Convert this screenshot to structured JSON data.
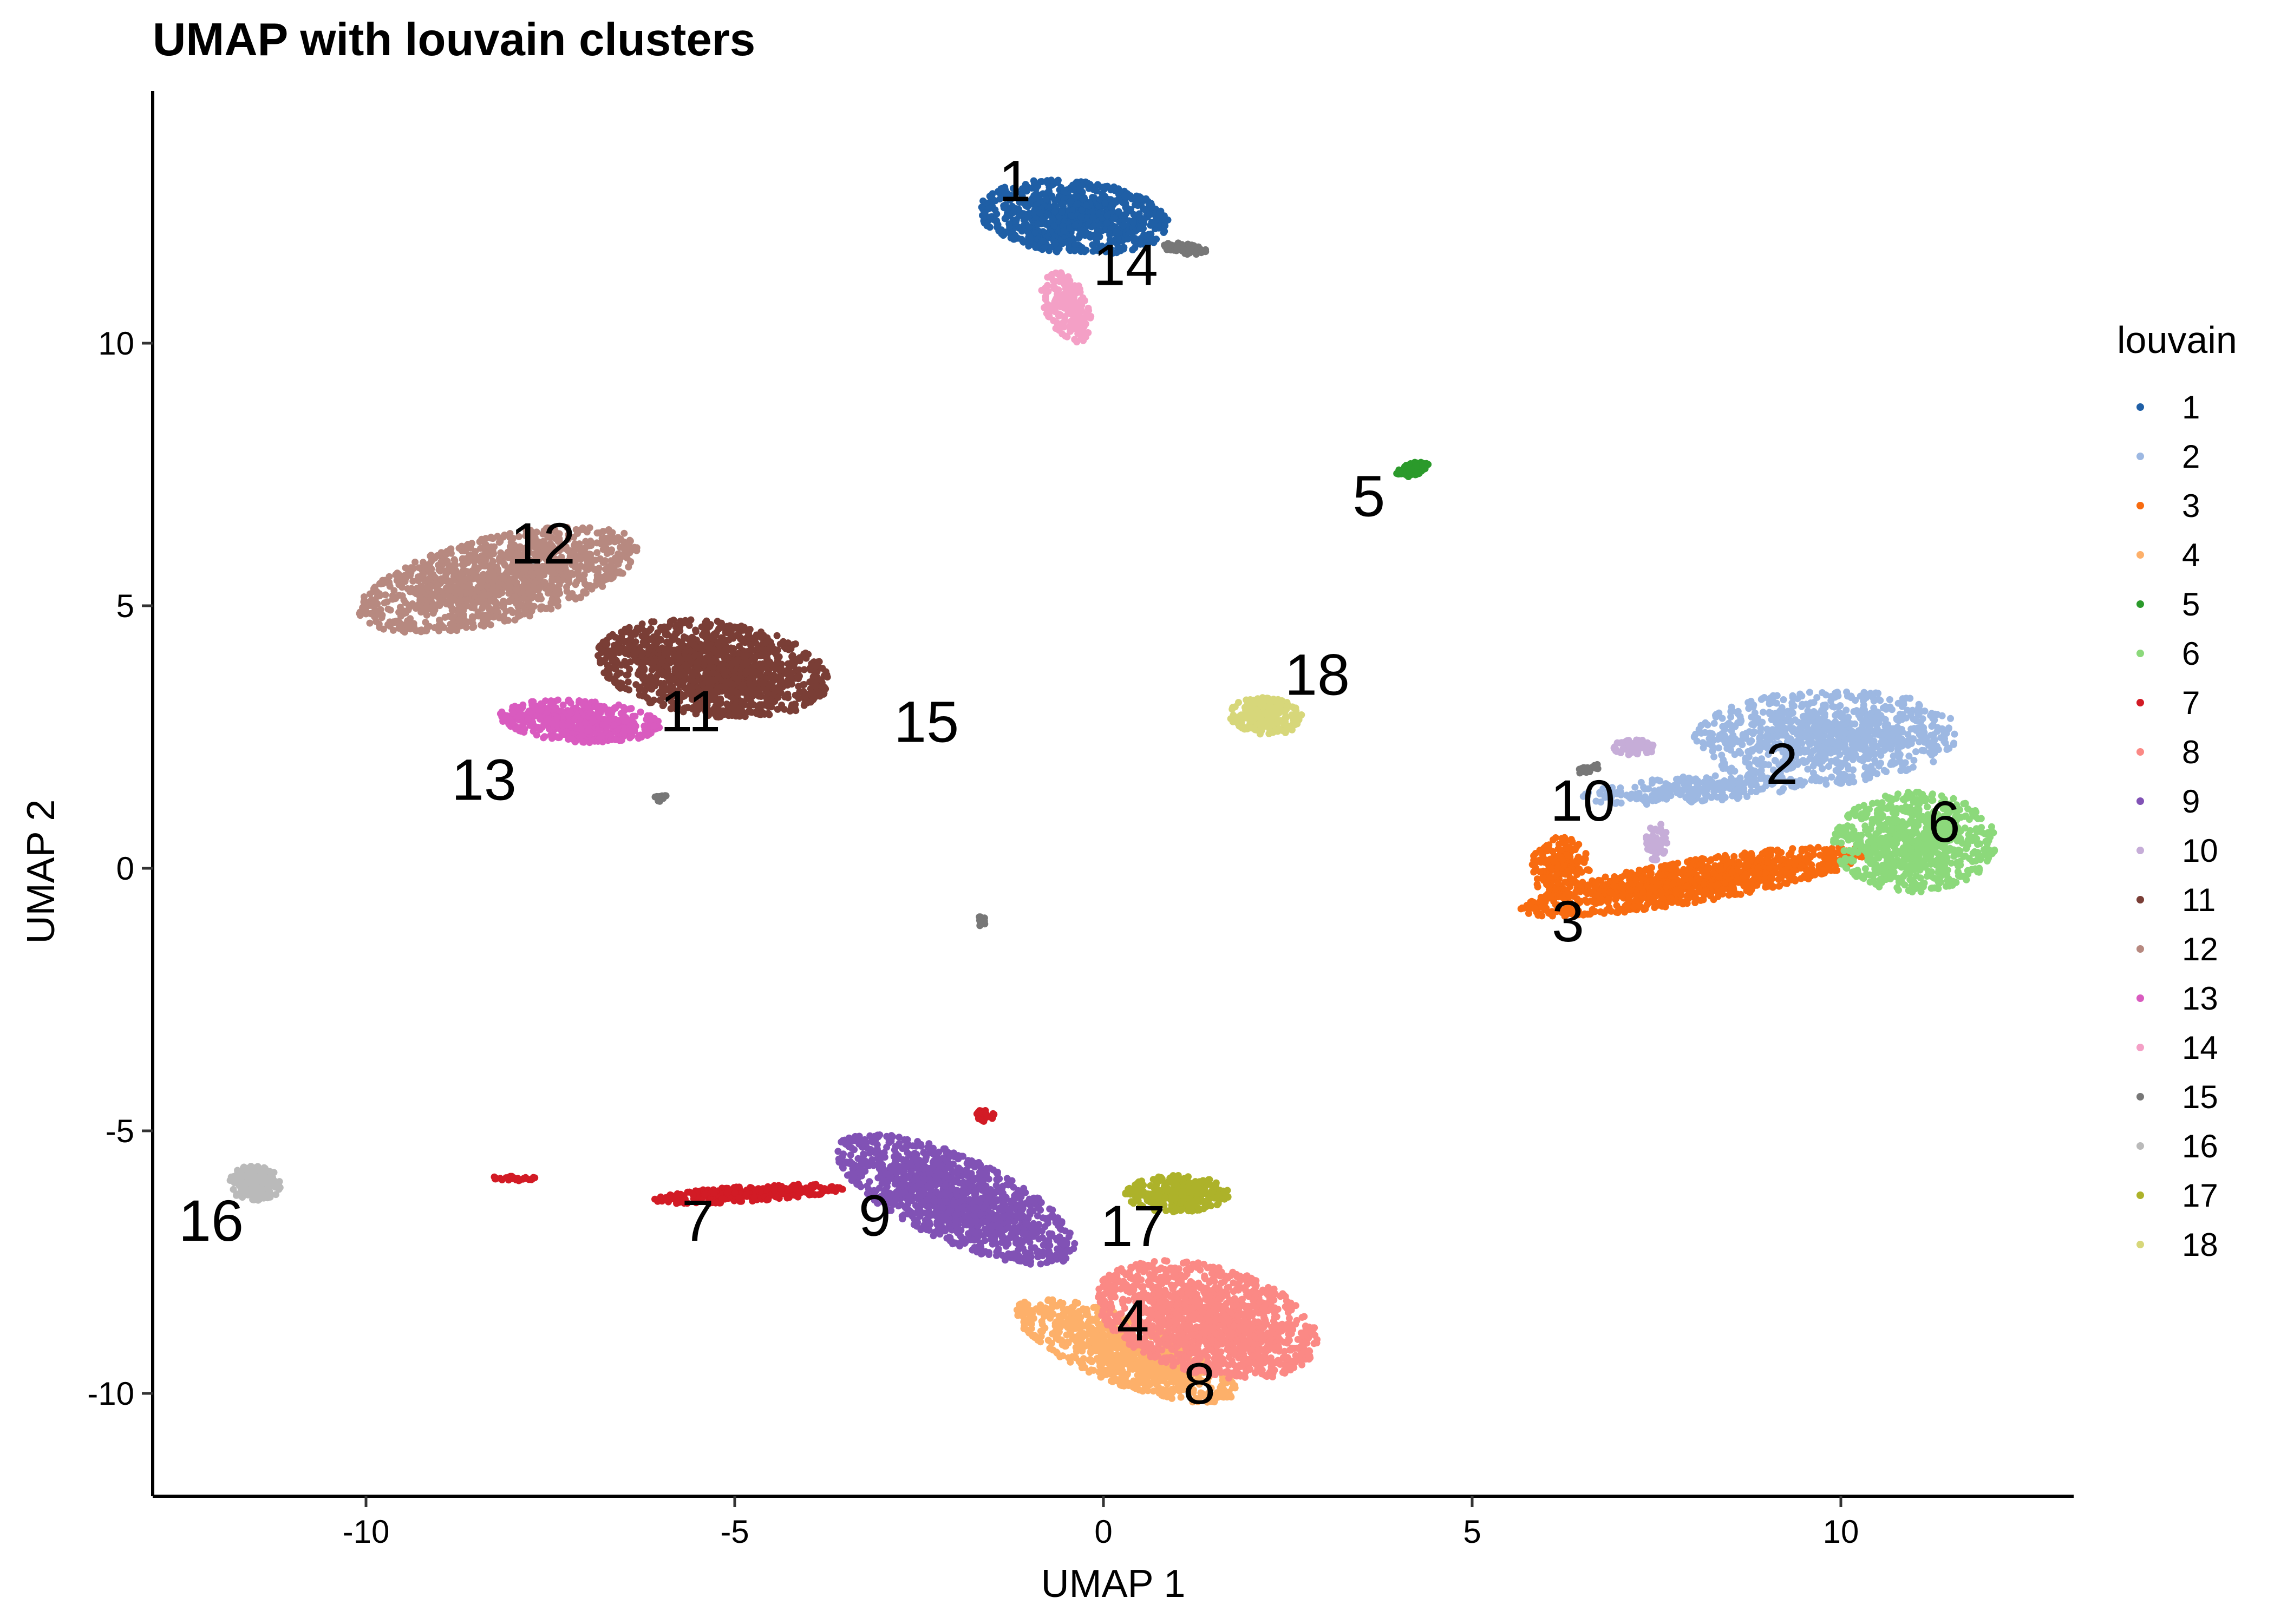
{
  "chart_data": {
    "type": "scatter",
    "title": "UMAP with louvain clusters",
    "xlabel": "UMAP 1",
    "ylabel": "UMAP 2",
    "xlim": [
      -12.9,
      13.0
    ],
    "ylim": [
      -11.9,
      14.5
    ],
    "xticks": [
      -10,
      -5,
      0,
      5,
      10
    ],
    "yticks": [
      -10,
      -5,
      0,
      5,
      10
    ],
    "xtick_labels": [
      "-10",
      "-5",
      "0",
      "5",
      "10"
    ],
    "ytick_labels": [
      "-10",
      "-5",
      "0",
      "5",
      "10"
    ],
    "grid": false,
    "legend": {
      "title": "louvain",
      "position": "right"
    },
    "series": [
      {
        "name": "1",
        "color": "#1F5FA6",
        "label_pos": [
          -1.2,
          13.0
        ],
        "regions": [
          [
            -0.4,
            12.4,
            1.3,
            0.7,
            -8,
            900
          ]
        ]
      },
      {
        "name": "2",
        "color": "#9DB8E2",
        "label_pos": [
          9.2,
          1.9
        ],
        "regions": [
          [
            9.8,
            2.5,
            1.8,
            0.9,
            3,
            900
          ],
          [
            8.0,
            1.5,
            1.5,
            0.25,
            5,
            250
          ]
        ]
      },
      {
        "name": "3",
        "color": "#F86B10",
        "label_pos": [
          6.3,
          -1.1
        ],
        "regions": [
          [
            8.0,
            -0.25,
            2.4,
            0.4,
            13,
            1100
          ],
          [
            6.2,
            0.0,
            0.4,
            0.6,
            0,
            200
          ]
        ]
      },
      {
        "name": "4",
        "color": "#FDB06A",
        "label_pos": [
          0.4,
          -8.7
        ],
        "regions": [
          [
            0.3,
            -9.2,
            1.7,
            0.6,
            -30,
            800
          ]
        ]
      },
      {
        "name": "5",
        "color": "#2B9A2B",
        "label_pos": [
          3.6,
          7.0
        ],
        "regions": [
          [
            4.2,
            7.6,
            0.25,
            0.12,
            30,
            100
          ]
        ]
      },
      {
        "name": "6",
        "color": "#8CD97B",
        "label_pos": [
          11.4,
          0.8
        ],
        "regions": [
          [
            11.0,
            0.5,
            1.1,
            0.95,
            0,
            800
          ]
        ]
      },
      {
        "name": "7",
        "color": "#D21B25",
        "label_pos": [
          -5.5,
          -6.8
        ],
        "regions": [
          [
            -4.8,
            -6.2,
            1.3,
            0.15,
            5,
            350
          ],
          [
            -8.0,
            -5.9,
            0.3,
            0.05,
            0,
            30
          ],
          [
            -1.6,
            -4.7,
            0.12,
            0.15,
            0,
            30
          ]
        ]
      },
      {
        "name": "8",
        "color": "#FB8985",
        "label_pos": [
          1.3,
          -9.9
        ],
        "regions": [
          [
            1.4,
            -8.6,
            1.6,
            1.0,
            -25,
            1400
          ]
        ]
      },
      {
        "name": "9",
        "color": "#8152B5",
        "label_pos": [
          -3.1,
          -6.7
        ],
        "regions": [
          [
            -2.0,
            -6.3,
            1.9,
            0.75,
            -35,
            1300
          ]
        ]
      },
      {
        "name": "10",
        "color": "#C6ADD8",
        "label_pos": [
          6.5,
          1.2
        ],
        "regions": [
          [
            7.2,
            2.3,
            0.3,
            0.15,
            0,
            80
          ],
          [
            7.5,
            0.5,
            0.15,
            0.4,
            0,
            60
          ]
        ]
      },
      {
        "name": "11",
        "color": "#7A3E36",
        "label_pos": [
          -5.6,
          2.9
        ],
        "regions": [
          [
            -5.3,
            3.8,
            1.6,
            0.9,
            -12,
            1300
          ]
        ]
      },
      {
        "name": "12",
        "color": "#B78980",
        "label_pos": [
          -7.6,
          6.1
        ],
        "regions": [
          [
            -8.2,
            5.5,
            2.0,
            0.8,
            20,
            1300
          ]
        ]
      },
      {
        "name": "13",
        "color": "#D95BBF",
        "label_pos": [
          -8.4,
          1.6
        ],
        "regions": [
          [
            -7.1,
            2.8,
            1.1,
            0.4,
            -5,
            500
          ]
        ]
      },
      {
        "name": "14",
        "color": "#F4A0C6",
        "label_pos": [
          0.3,
          11.4
        ],
        "regions": [
          [
            -0.5,
            10.7,
            0.3,
            0.7,
            15,
            200
          ]
        ]
      },
      {
        "name": "15",
        "color": "#777777",
        "label_pos": [
          -2.4,
          2.7
        ],
        "regions": [
          [
            1.1,
            11.8,
            0.3,
            0.1,
            -10,
            60
          ],
          [
            -6.0,
            1.35,
            0.08,
            0.08,
            0,
            20
          ],
          [
            -1.65,
            -1.0,
            0.08,
            0.1,
            0,
            20
          ],
          [
            6.6,
            1.9,
            0.2,
            0.06,
            20,
            25
          ]
        ]
      },
      {
        "name": "16",
        "color": "#BABABA",
        "label_pos": [
          -12.1,
          -6.8
        ],
        "regions": [
          [
            -11.5,
            -6.0,
            0.35,
            0.35,
            0,
            250
          ]
        ]
      },
      {
        "name": "17",
        "color": "#ADB22A",
        "label_pos": [
          0.4,
          -6.9
        ],
        "regions": [
          [
            1.0,
            -6.2,
            0.7,
            0.35,
            0,
            300
          ]
        ]
      },
      {
        "name": "18",
        "color": "#D7D77A",
        "label_pos": [
          2.9,
          3.6
        ],
        "regions": [
          [
            2.2,
            2.9,
            0.5,
            0.35,
            -10,
            250
          ]
        ]
      }
    ]
  }
}
